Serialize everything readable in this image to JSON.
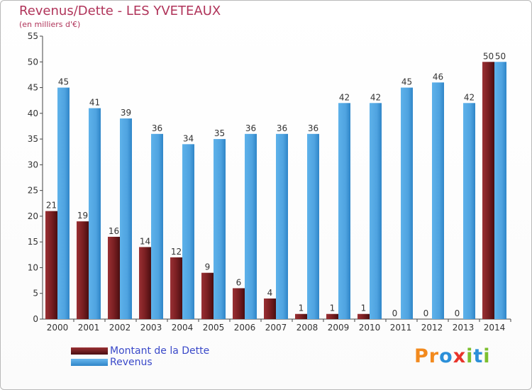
{
  "header": {
    "title": "Revenus/Dette - LES YVETEAUX",
    "subtitle": "(en milliers d'€)"
  },
  "legend": {
    "debt_label": "Montant de la Dette",
    "revenue_label": "Revenus"
  },
  "logo": {
    "text": "Proxiti",
    "colors": [
      "#f28a1e",
      "#f28a1e",
      "#2b8fd8",
      "#e8342b",
      "#7cbf2e",
      "#2b8fd8",
      "#7cbf2e"
    ]
  },
  "colors": {
    "debt": "#7a1f22",
    "revenue": "#4fa3e0",
    "text": "#b0345a",
    "legend_text": "#3a49c9"
  },
  "chart_data": {
    "type": "bar",
    "categories": [
      "2000",
      "2001",
      "2002",
      "2003",
      "2004",
      "2005",
      "2006",
      "2007",
      "2008",
      "2009",
      "2010",
      "2011",
      "2012",
      "2013",
      "2014"
    ],
    "series": [
      {
        "name": "Montant de la Dette",
        "values": [
          21,
          19,
          16,
          14,
          12,
          9,
          6,
          4,
          1,
          1,
          1,
          0,
          0,
          0,
          50
        ]
      },
      {
        "name": "Revenus",
        "values": [
          45,
          41,
          39,
          36,
          34,
          35,
          36,
          36,
          36,
          42,
          42,
          45,
          46,
          42,
          50
        ]
      }
    ],
    "title": "Revenus/Dette - LES YVETEAUX",
    "ylim": [
      0,
      55
    ],
    "yticks": [
      0,
      5,
      10,
      15,
      20,
      25,
      30,
      35,
      40,
      45,
      50,
      55
    ],
    "grid": false,
    "legend_position": "bottom-left"
  }
}
